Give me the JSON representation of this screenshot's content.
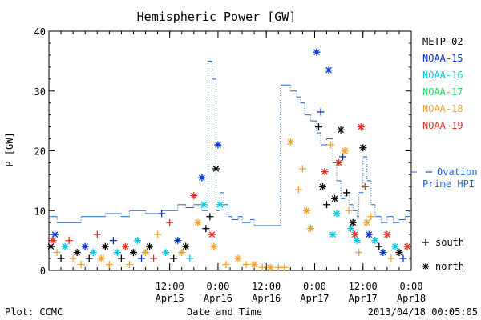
{
  "chart_data": {
    "type": "scatter",
    "title": "Hemispheric Power [GW]",
    "ylabel": "P [GW]",
    "xlabel": "Date and Time",
    "x_range": [
      "2013-04-14 06:00",
      "2013-04-18 00:00"
    ],
    "ylim": [
      0,
      40
    ],
    "y_ticks": [
      0,
      10,
      20,
      30,
      40
    ],
    "x_ticks": [
      {
        "t": "2013-04-15 12:00",
        "time": "12:00",
        "date": "Apr15"
      },
      {
        "t": "2013-04-16 00:00",
        "time": "0:00",
        "date": "Apr16"
      },
      {
        "t": "2013-04-16 12:00",
        "time": "12:00",
        "date": "Apr16"
      },
      {
        "t": "2013-04-17 00:00",
        "time": "0:00",
        "date": "Apr17"
      },
      {
        "t": "2013-04-17 12:00",
        "time": "12:00",
        "date": "Apr17"
      },
      {
        "t": "2013-04-18 00:00",
        "time": "0:00",
        "date": "Apr18"
      }
    ],
    "legend_placement": "right",
    "satellites": [
      {
        "name": "METP-02",
        "color": "#000000"
      },
      {
        "name": "NOAA-15",
        "color": "#0033cc"
      },
      {
        "name": "NOAA-16",
        "color": "#00c8e6"
      },
      {
        "name": "NOAA-17",
        "color": "#22dd66"
      },
      {
        "name": "NOAA-18",
        "color": "#f0a030"
      },
      {
        "name": "NOAA-19",
        "color": "#e03020"
      }
    ],
    "ovation": {
      "label_line1": "Ovation",
      "label_line2": "Prime HPI",
      "color": "#1a66cc",
      "steps": [
        [
          "2013-04-14 06:00",
          9
        ],
        [
          "2013-04-14 08:00",
          8
        ],
        [
          "2013-04-14 14:00",
          9
        ],
        [
          "2013-04-14 20:00",
          9.5
        ],
        [
          "2013-04-15 00:00",
          9
        ],
        [
          "2013-04-15 02:00",
          10
        ],
        [
          "2013-04-15 06:00",
          9.5
        ],
        [
          "2013-04-15 10:00",
          10
        ],
        [
          "2013-04-15 14:00",
          11
        ],
        [
          "2013-04-15 16:00",
          10.5
        ],
        [
          "2013-04-15 18:00",
          11
        ],
        [
          "2013-04-15 20:00",
          10
        ],
        [
          "2013-04-15 21:30",
          35
        ],
        [
          "2013-04-15 22:30",
          32
        ],
        [
          "2013-04-15 23:30",
          10
        ],
        [
          "2013-04-16 00:30",
          13
        ],
        [
          "2013-04-16 01:30",
          11
        ],
        [
          "2013-04-16 02:30",
          9
        ],
        [
          "2013-04-16 03:30",
          8.5
        ],
        [
          "2013-04-16 05:00",
          9
        ],
        [
          "2013-04-16 06:00",
          8
        ],
        [
          "2013-04-16 08:00",
          8.5
        ],
        [
          "2013-04-16 09:00",
          7.5
        ],
        [
          "2013-04-16 15:30",
          31
        ],
        [
          "2013-04-16 18:00",
          30
        ],
        [
          "2013-04-16 19:30",
          29
        ],
        [
          "2013-04-16 20:30",
          28
        ],
        [
          "2013-04-16 21:30",
          26
        ],
        [
          "2013-04-16 23:00",
          25
        ],
        [
          "2013-04-17 00:30",
          23
        ],
        [
          "2013-04-17 01:30",
          21
        ],
        [
          "2013-04-17 03:00",
          22
        ],
        [
          "2013-04-17 04:30",
          18
        ],
        [
          "2013-04-17 05:30",
          15
        ],
        [
          "2013-04-17 06:30",
          12
        ],
        [
          "2013-04-17 07:30",
          13
        ],
        [
          "2013-04-17 08:30",
          11
        ],
        [
          "2013-04-17 09:30",
          10
        ],
        [
          "2013-04-17 10:30",
          9
        ],
        [
          "2013-04-17 11:00",
          13
        ],
        [
          "2013-04-17 12:00",
          19
        ],
        [
          "2013-04-17 13:00",
          15
        ],
        [
          "2013-04-17 14:00",
          11
        ],
        [
          "2013-04-17 15:00",
          9
        ],
        [
          "2013-04-17 16:30",
          8
        ],
        [
          "2013-04-17 18:00",
          9
        ],
        [
          "2013-04-17 19:30",
          8
        ],
        [
          "2013-04-17 21:00",
          8.5
        ],
        [
          "2013-04-17 22:30",
          9
        ],
        [
          "2013-04-17 23:30",
          10
        ]
      ]
    },
    "marker_legend": [
      {
        "symbol": "+",
        "label": "south"
      },
      {
        "symbol": "*",
        "label": "north"
      }
    ],
    "points": [
      [
        "2013-04-14 06:30",
        4,
        "METP-02",
        "north"
      ],
      [
        "2013-04-14 07:00",
        5,
        "NOAA-19",
        "north"
      ],
      [
        "2013-04-14 07:30",
        6,
        "NOAA-15",
        "north"
      ],
      [
        "2013-04-14 08:00",
        3,
        "NOAA-18",
        "south"
      ],
      [
        "2013-04-14 09:00",
        2,
        "METP-02",
        "south"
      ],
      [
        "2013-04-14 10:00",
        4,
        "NOAA-16",
        "north"
      ],
      [
        "2013-04-14 11:00",
        5,
        "NOAA-19",
        "south"
      ],
      [
        "2013-04-14 12:00",
        2,
        "NOAA-18",
        "south"
      ],
      [
        "2013-04-14 13:00",
        3,
        "METP-02",
        "north"
      ],
      [
        "2013-04-14 14:00",
        1,
        "NOAA-18",
        "south"
      ],
      [
        "2013-04-14 15:00",
        4,
        "NOAA-15",
        "north"
      ],
      [
        "2013-04-14 16:00",
        2,
        "METP-02",
        "south"
      ],
      [
        "2013-04-14 17:00",
        3,
        "NOAA-16",
        "north"
      ],
      [
        "2013-04-14 18:00",
        6,
        "NOAA-19",
        "south"
      ],
      [
        "2013-04-14 19:00",
        2,
        "NOAA-18",
        "north"
      ],
      [
        "2013-04-14 20:00",
        4,
        "METP-02",
        "north"
      ],
      [
        "2013-04-14 21:00",
        1,
        "NOAA-18",
        "south"
      ],
      [
        "2013-04-14 22:00",
        5,
        "NOAA-15",
        "south"
      ],
      [
        "2013-04-14 23:00",
        3,
        "NOAA-16",
        "north"
      ],
      [
        "2013-04-15 00:00",
        2,
        "METP-02",
        "south"
      ],
      [
        "2013-04-15 01:00",
        4,
        "NOAA-19",
        "north"
      ],
      [
        "2013-04-15 02:00",
        1,
        "NOAA-18",
        "south"
      ],
      [
        "2013-04-15 03:00",
        3,
        "METP-02",
        "north"
      ],
      [
        "2013-04-15 04:00",
        5,
        "NOAA-16",
        "north"
      ],
      [
        "2013-04-15 05:00",
        2,
        "NOAA-15",
        "south"
      ],
      [
        "2013-04-15 06:00",
        3,
        "NOAA-18",
        "north"
      ],
      [
        "2013-04-15 07:00",
        4,
        "METP-02",
        "north"
      ],
      [
        "2013-04-15 08:00",
        2,
        "NOAA-19",
        "south"
      ],
      [
        "2013-04-15 09:00",
        6,
        "NOAA-18",
        "south"
      ],
      [
        "2013-04-15 10:00",
        9.5,
        "NOAA-15",
        "south"
      ],
      [
        "2013-04-15 11:00",
        3,
        "NOAA-16",
        "north"
      ],
      [
        "2013-04-15 12:00",
        8,
        "NOAA-19",
        "south"
      ],
      [
        "2013-04-15 13:00",
        2,
        "METP-02",
        "south"
      ],
      [
        "2013-04-15 14:00",
        5,
        "NOAA-15",
        "north"
      ],
      [
        "2013-04-15 15:00",
        3,
        "NOAA-18",
        "north"
      ],
      [
        "2013-04-15 16:00",
        4,
        "METP-02",
        "north"
      ],
      [
        "2013-04-15 17:00",
        2,
        "NOAA-16",
        "south"
      ],
      [
        "2013-04-15 18:00",
        12.5,
        "NOAA-19",
        "north"
      ],
      [
        "2013-04-15 19:00",
        8,
        "NOAA-18",
        "north"
      ],
      [
        "2013-04-15 20:00",
        15.5,
        "NOAA-15",
        "north"
      ],
      [
        "2013-04-15 20:30",
        11,
        "NOAA-16",
        "north"
      ],
      [
        "2013-04-15 21:00",
        7,
        "METP-02",
        "south"
      ],
      [
        "2013-04-15 22:00",
        9,
        "METP-02",
        "south"
      ],
      [
        "2013-04-15 22:30",
        6,
        "NOAA-19",
        "north"
      ],
      [
        "2013-04-15 23:00",
        4,
        "NOAA-18",
        "north"
      ],
      [
        "2013-04-15 23:30",
        17,
        "METP-02",
        "north"
      ],
      [
        "2013-04-16 00:00",
        21,
        "NOAA-15",
        "north"
      ],
      [
        "2013-04-16 00:30",
        11,
        "NOAA-16",
        "north"
      ],
      [
        "2013-04-16 02:00",
        1,
        "NOAA-18",
        "south"
      ],
      [
        "2013-04-16 05:00",
        2,
        "NOAA-18",
        "north"
      ],
      [
        "2013-04-16 07:00",
        1,
        "NOAA-18",
        "south"
      ],
      [
        "2013-04-16 09:00",
        1,
        "NOAA-18",
        "north"
      ],
      [
        "2013-04-16 11:00",
        0.5,
        "NOAA-18",
        "south"
      ],
      [
        "2013-04-16 13:00",
        0.5,
        "NOAA-18",
        "north"
      ],
      [
        "2013-04-16 15:00",
        0.5,
        "NOAA-18",
        "south"
      ],
      [
        "2013-04-16 16:30",
        0.5,
        "NOAA-18",
        "south"
      ],
      [
        "2013-04-16 18:00",
        21.5,
        "NOAA-18",
        "north"
      ],
      [
        "2013-04-16 20:00",
        13.5,
        "NOAA-18",
        "south"
      ],
      [
        "2013-04-16 21:00",
        17,
        "NOAA-18",
        "south"
      ],
      [
        "2013-04-16 22:00",
        10,
        "NOAA-18",
        "north"
      ],
      [
        "2013-04-16 23:00",
        7,
        "NOAA-18",
        "north"
      ],
      [
        "2013-04-17 00:30",
        36.5,
        "NOAA-15",
        "north"
      ],
      [
        "2013-04-17 01:00",
        24,
        "METP-02",
        "south"
      ],
      [
        "2013-04-17 01:30",
        26.5,
        "NOAA-15",
        "south"
      ],
      [
        "2013-04-17 02:00",
        14,
        "METP-02",
        "north"
      ],
      [
        "2013-04-17 02:30",
        16.5,
        "NOAA-19",
        "north"
      ],
      [
        "2013-04-17 03:00",
        11,
        "METP-02",
        "south"
      ],
      [
        "2013-04-17 03:30",
        33.5,
        "NOAA-15",
        "north"
      ],
      [
        "2013-04-17 04:00",
        21,
        "NOAA-18",
        "south"
      ],
      [
        "2013-04-17 04:30",
        6,
        "NOAA-16",
        "north"
      ],
      [
        "2013-04-17 05:00",
        12,
        "METP-02",
        "north"
      ],
      [
        "2013-04-17 05:30",
        9.5,
        "NOAA-16",
        "north"
      ],
      [
        "2013-04-17 06:00",
        18,
        "NOAA-19",
        "north"
      ],
      [
        "2013-04-17 06:30",
        23.5,
        "METP-02",
        "north"
      ],
      [
        "2013-04-17 07:00",
        19,
        "NOAA-15",
        "south"
      ],
      [
        "2013-04-17 07:30",
        20,
        "NOAA-18",
        "north"
      ],
      [
        "2013-04-17 08:00",
        13,
        "METP-02",
        "south"
      ],
      [
        "2013-04-17 08:30",
        10,
        "NOAA-18",
        "south"
      ],
      [
        "2013-04-17 09:00",
        7,
        "NOAA-16",
        "north"
      ],
      [
        "2013-04-17 09:30",
        8,
        "METP-02",
        "north"
      ],
      [
        "2013-04-17 10:00",
        6,
        "NOAA-19",
        "north"
      ],
      [
        "2013-04-17 10:30",
        5,
        "NOAA-16",
        "north"
      ],
      [
        "2013-04-17 11:00",
        3,
        "NOAA-18",
        "south"
      ],
      [
        "2013-04-17 11:30",
        24,
        "NOAA-19",
        "north"
      ],
      [
        "2013-04-17 12:00",
        20.5,
        "METP-02",
        "north"
      ],
      [
        "2013-04-17 12:30",
        14,
        "NOAA-19",
        "south"
      ],
      [
        "2013-04-17 13:00",
        8,
        "NOAA-18",
        "north"
      ],
      [
        "2013-04-17 13:30",
        6,
        "NOAA-15",
        "north"
      ],
      [
        "2013-04-17 14:00",
        9,
        "NOAA-18",
        "south"
      ],
      [
        "2013-04-17 15:00",
        5,
        "NOAA-16",
        "north"
      ],
      [
        "2013-04-17 16:00",
        4,
        "METP-02",
        "south"
      ],
      [
        "2013-04-17 17:00",
        3,
        "NOAA-15",
        "north"
      ],
      [
        "2013-04-17 18:00",
        6,
        "NOAA-19",
        "north"
      ],
      [
        "2013-04-17 19:00",
        2,
        "NOAA-18",
        "south"
      ],
      [
        "2013-04-17 20:00",
        4,
        "NOAA-16",
        "north"
      ],
      [
        "2013-04-17 21:00",
        3,
        "METP-02",
        "north"
      ],
      [
        "2013-04-17 22:00",
        2,
        "NOAA-15",
        "south"
      ],
      [
        "2013-04-17 23:00",
        4,
        "NOAA-19",
        "north"
      ]
    ]
  },
  "footer": {
    "left": "Plot: CCMC",
    "right": "2013/04/18 00:05:05"
  }
}
